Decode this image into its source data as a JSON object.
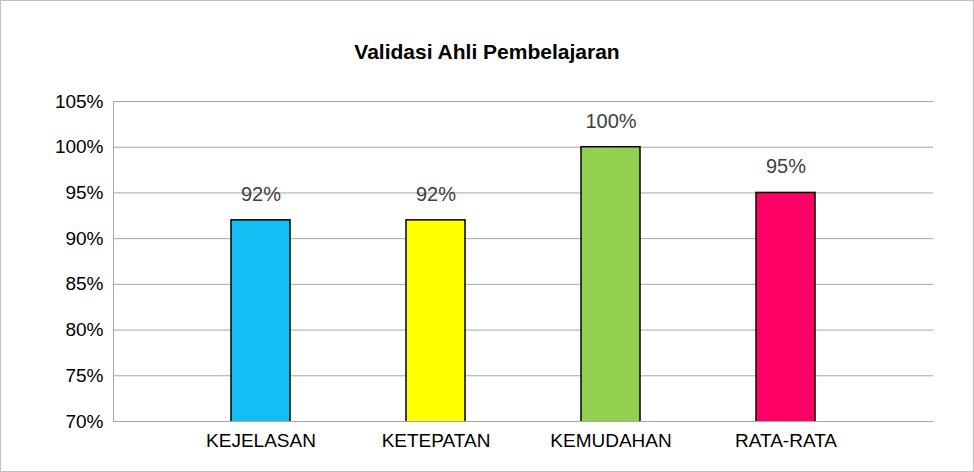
{
  "chart_data": {
    "type": "bar",
    "title": "Validasi Ahli Pembelajaran",
    "categories": [
      "KEJELASAN",
      "KETEPATAN",
      "KEMUDAHAN",
      "RATA-RATA"
    ],
    "values": [
      92,
      92,
      100,
      95
    ],
    "value_labels": [
      "92%",
      "92%",
      "100%",
      "95%"
    ],
    "colors": [
      "#12bff5",
      "#ffff00",
      "#92d050",
      "#ff0066"
    ],
    "ylim": [
      70,
      105
    ],
    "yticks": [
      {
        "value": 70,
        "label": "70%"
      },
      {
        "value": 75,
        "label": "75%"
      },
      {
        "value": 80,
        "label": "80%"
      },
      {
        "value": 85,
        "label": "85%"
      },
      {
        "value": 90,
        "label": "90%"
      },
      {
        "value": 95,
        "label": "95%"
      },
      {
        "value": 100,
        "label": "100%"
      },
      {
        "value": 105,
        "label": "105%"
      }
    ],
    "grid": true,
    "data_labels": true
  }
}
